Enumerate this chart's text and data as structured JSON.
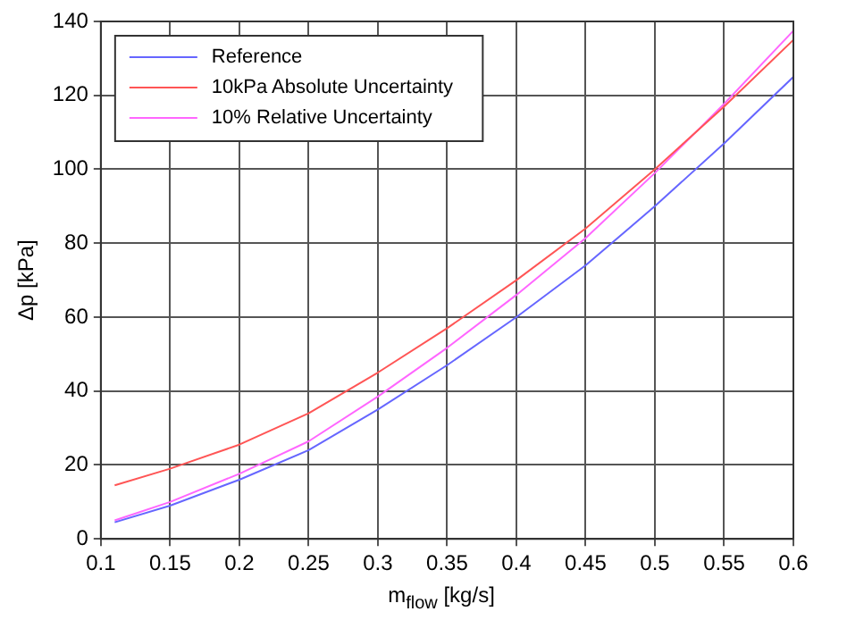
{
  "chart_data": {
    "type": "line",
    "xlabel": "m$_{flow}$ [kg/s]",
    "ylabel": "Δp [kPa]",
    "x": [
      0.11,
      0.15,
      0.2,
      0.25,
      0.3,
      0.35,
      0.4,
      0.45,
      0.5,
      0.55,
      0.6
    ],
    "series": [
      {
        "name": "Reference",
        "color": "#6666ff",
        "values": [
          4.5,
          9,
          16,
          24,
          35,
          47,
          60,
          74,
          90,
          107,
          125
        ]
      },
      {
        "name": "10kPa Absolute Uncertainty",
        "color": "#ff5555",
        "values": [
          14.5,
          19,
          25.5,
          34,
          45,
          57,
          70,
          84,
          100,
          117,
          135
        ]
      },
      {
        "name": "10% Relative Uncertainty",
        "color": "#ff66ff",
        "values": [
          5,
          10,
          17.6,
          26.4,
          38.5,
          51.7,
          66,
          81.4,
          99,
          117.7,
          137.5
        ]
      }
    ],
    "xlim": [
      0.1,
      0.6
    ],
    "xticks": [
      0.1,
      0.15,
      0.2,
      0.25,
      0.3,
      0.35,
      0.4,
      0.45,
      0.5,
      0.55,
      0.6
    ],
    "ylim": [
      0,
      140
    ],
    "yticks": [
      0,
      20,
      40,
      60,
      80,
      100,
      120,
      140
    ],
    "grid": true,
    "legend": "top left",
    "marker": "none",
    "line_style": "solid"
  }
}
